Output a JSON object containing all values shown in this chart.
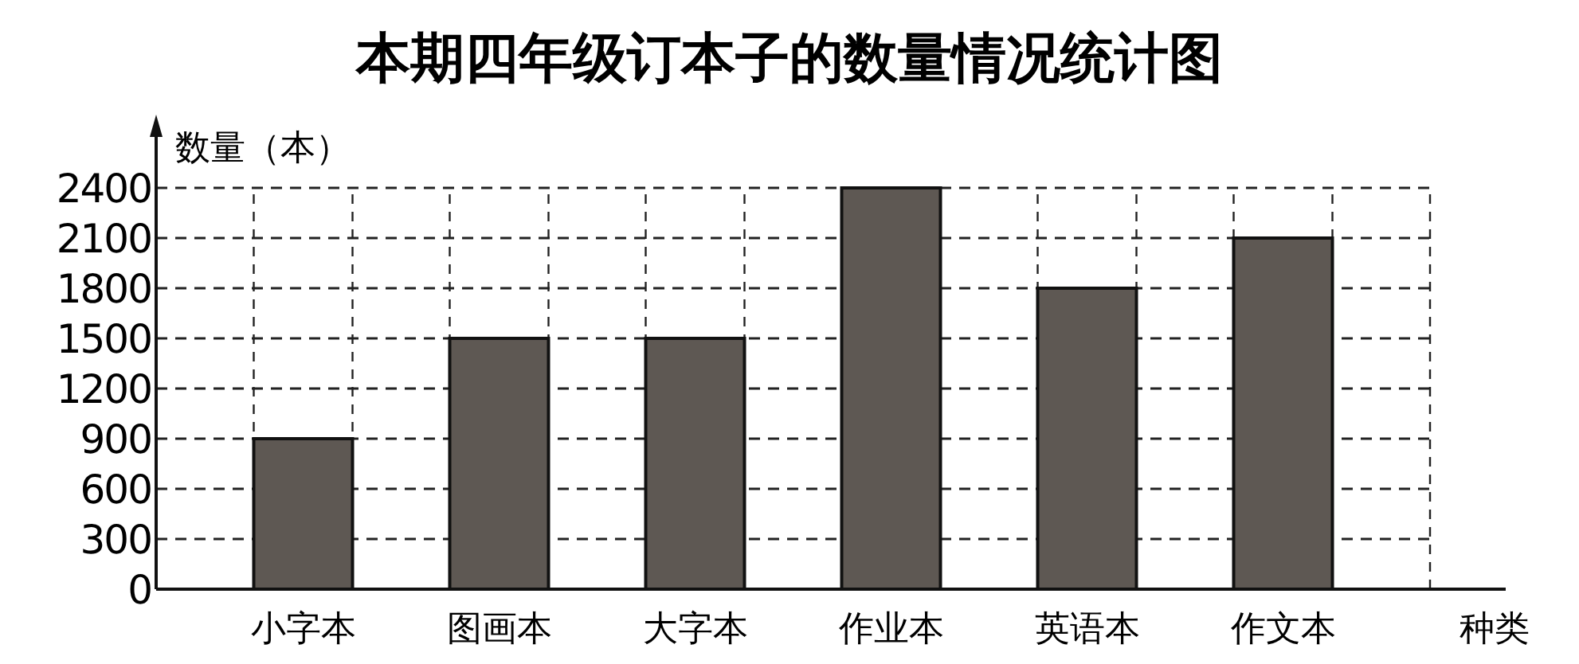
{
  "chart_data": {
    "type": "bar",
    "title": "本期四年级订本子的数量情况统计图",
    "xlabel": "种类",
    "ylabel": "数量（本）",
    "categories": [
      "小字本",
      "图画本",
      "大字本",
      "作业本",
      "英语本",
      "作文本"
    ],
    "values": [
      900,
      1500,
      1500,
      2400,
      1800,
      2100
    ],
    "color": "#5e5853",
    "ylim": [
      0,
      2400
    ],
    "yticks": [
      0,
      300,
      600,
      900,
      1200,
      1500,
      1800,
      2100,
      2400
    ],
    "grid": true
  }
}
